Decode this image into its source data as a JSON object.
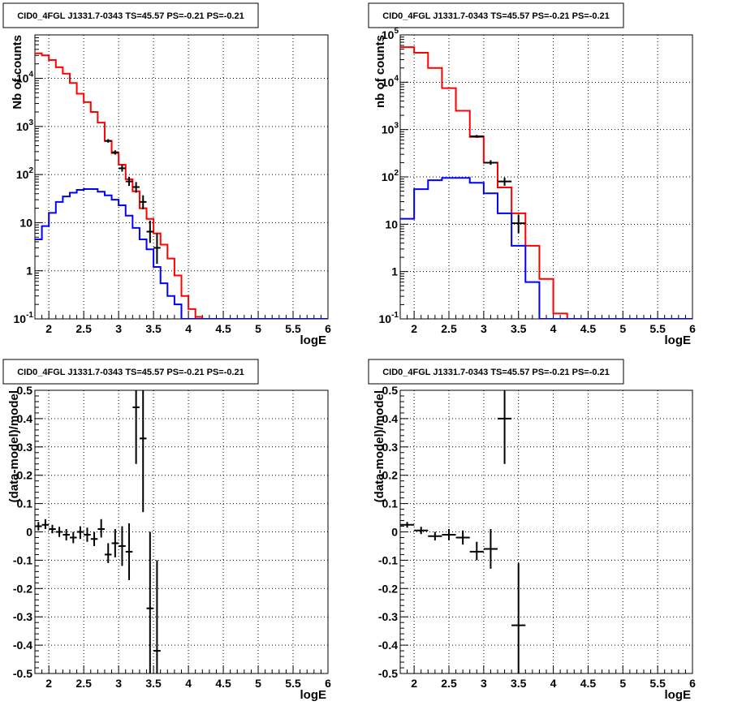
{
  "chart_data": [
    {
      "type": "line",
      "title": "CID0_4FGL J1331.7-0343 TS=45.57 PS=-0.21 PS=-0.21",
      "xlabel": "logE",
      "ylabel": "Nb of counts",
      "xlim": [
        1.8,
        6.0
      ],
      "ylim": [
        0.1,
        80000
      ],
      "yscale": "log",
      "grid": true,
      "xticks": [
        "2",
        "2.5",
        "3",
        "3.5",
        "4",
        "4.5",
        "5",
        "5.5",
        "6"
      ],
      "yticks": [
        "10^-1",
        "1",
        "10",
        "10^2",
        "10^3",
        "10^4"
      ],
      "series": [
        {
          "color": "#ff0000",
          "kind": "step",
          "edges": [
            1.8,
            1.9,
            2.0,
            2.1,
            2.2,
            2.3,
            2.4,
            2.5,
            2.6,
            2.7,
            2.8,
            2.9,
            3.0,
            3.1,
            3.2,
            3.3,
            3.4,
            3.5,
            3.6,
            3.7,
            3.8,
            3.9,
            4.0,
            4.1,
            4.2,
            6.0
          ],
          "values": [
            33000,
            30000,
            24000,
            17000,
            12500,
            8000,
            4800,
            3200,
            2000,
            1200,
            500,
            280,
            160,
            80,
            45,
            20,
            12,
            6,
            3.5,
            1.8,
            0.8,
            0.3,
            0.16,
            0.11,
            0.1
          ]
        },
        {
          "color": "#0000ff",
          "kind": "step",
          "edges": [
            1.8,
            1.9,
            2.0,
            2.1,
            2.2,
            2.3,
            2.4,
            2.5,
            2.6,
            2.7,
            2.8,
            2.9,
            3.0,
            3.1,
            3.2,
            3.3,
            3.4,
            3.5,
            3.6,
            3.7,
            3.8,
            3.9,
            4.0,
            6.0
          ],
          "values": [
            4.5,
            8.5,
            16,
            27,
            35,
            42,
            48,
            50,
            50,
            44,
            37,
            30,
            23,
            14,
            7.8,
            4.5,
            2.8,
            1.2,
            0.55,
            0.3,
            0.2,
            0.1,
            0.1
          ]
        },
        {
          "color": "#000000",
          "kind": "points",
          "points": [
            {
              "x": 2.85,
              "y": 500,
              "lo": 460,
              "hi": 545,
              "xerr": 0.05
            },
            {
              "x": 2.95,
              "y": 290,
              "lo": 260,
              "hi": 320,
              "xerr": 0.05
            },
            {
              "x": 3.05,
              "y": 135,
              "lo": 115,
              "hi": 160,
              "xerr": 0.05
            },
            {
              "x": 3.15,
              "y": 72,
              "lo": 58,
              "hi": 90,
              "xerr": 0.05
            },
            {
              "x": 3.25,
              "y": 55,
              "lo": 42,
              "hi": 70,
              "xerr": 0.05
            },
            {
              "x": 3.35,
              "y": 27,
              "lo": 19,
              "hi": 37,
              "xerr": 0.05
            },
            {
              "x": 3.45,
              "y": 6.5,
              "lo": 3.8,
              "hi": 11,
              "xerr": 0.05
            },
            {
              "x": 3.55,
              "y": 3,
              "lo": 1.4,
              "hi": 6,
              "xerr": 0.05
            }
          ]
        }
      ]
    },
    {
      "type": "line",
      "title": "CID0_4FGL J1331.7-0343 TS=45.57 PS=-0.21 PS=-0.21",
      "xlabel": "logE",
      "ylabel": "nb of counts",
      "xlim": [
        1.8,
        6.0
      ],
      "ylim": [
        0.1,
        100000
      ],
      "yscale": "log",
      "grid": true,
      "xticks": [
        "2",
        "2.5",
        "3",
        "3.5",
        "4",
        "4.5",
        "5",
        "5.5",
        "6"
      ],
      "yticks": [
        "10^-1",
        "1",
        "10",
        "10^2",
        "10^3",
        "10^4",
        "10^5"
      ],
      "series": [
        {
          "color": "#ff0000",
          "kind": "step",
          "edges": [
            1.8,
            2.0,
            2.2,
            2.4,
            2.6,
            2.8,
            3.0,
            3.2,
            3.4,
            3.6,
            3.8,
            4.0,
            4.2,
            6.0
          ],
          "values": [
            55000,
            42000,
            20000,
            7500,
            2500,
            700,
            200,
            60,
            17,
            3.5,
            0.7,
            0.13,
            0.1
          ]
        },
        {
          "color": "#0000ff",
          "kind": "step",
          "edges": [
            1.8,
            2.0,
            2.2,
            2.4,
            2.6,
            2.8,
            3.0,
            3.2,
            3.4,
            3.6,
            3.8,
            4.0,
            6.0
          ],
          "values": [
            13,
            55,
            85,
            95,
            95,
            75,
            45,
            17,
            3.5,
            0.6,
            0.1,
            0.1
          ]
        },
        {
          "color": "#000000",
          "kind": "points",
          "points": [
            {
              "x": 2.9,
              "y": 720,
              "lo": 670,
              "hi": 770,
              "xerr": 0.1
            },
            {
              "x": 3.1,
              "y": 200,
              "lo": 180,
              "hi": 225,
              "xerr": 0.1
            },
            {
              "x": 3.3,
              "y": 80,
              "lo": 65,
              "hi": 97,
              "xerr": 0.1
            },
            {
              "x": 3.5,
              "y": 10.5,
              "lo": 6.5,
              "hi": 16,
              "xerr": 0.1
            }
          ]
        }
      ]
    },
    {
      "type": "scatter",
      "title": "CID0_4FGL J1331.7-0343 TS=45.57 PS=-0.21 PS=-0.21",
      "xlabel": "logE",
      "ylabel": "(data-model)/model",
      "xlim": [
        1.8,
        6.0
      ],
      "ylim": [
        -0.5,
        0.5
      ],
      "grid": true,
      "xticks": [
        "2",
        "2.5",
        "3",
        "3.5",
        "4",
        "4.5",
        "5",
        "5.5",
        "6"
      ],
      "yticks": [
        "-0.5",
        "-0.4",
        "-0.3",
        "-0.2",
        "-0.1",
        "0",
        "0.1",
        "0.2",
        "0.3",
        "0.4",
        "0.5"
      ],
      "series": [
        {
          "color": "#000000",
          "kind": "points",
          "points": [
            {
              "x": 1.85,
              "y": 0.02,
              "lo": 0.005,
              "hi": 0.035,
              "xerr": 0.05
            },
            {
              "x": 1.95,
              "y": 0.025,
              "lo": 0.01,
              "hi": 0.045,
              "xerr": 0.05
            },
            {
              "x": 2.05,
              "y": 0.01,
              "lo": -0.005,
              "hi": 0.025,
              "xerr": 0.05
            },
            {
              "x": 2.15,
              "y": 0.0,
              "lo": -0.018,
              "hi": 0.018,
              "xerr": 0.05
            },
            {
              "x": 2.25,
              "y": -0.01,
              "lo": -0.03,
              "hi": 0.01,
              "xerr": 0.05
            },
            {
              "x": 2.35,
              "y": -0.02,
              "lo": -0.04,
              "hi": 0.0,
              "xerr": 0.05
            },
            {
              "x": 2.45,
              "y": 0.0,
              "lo": -0.025,
              "hi": 0.02,
              "xerr": 0.05
            },
            {
              "x": 2.55,
              "y": -0.01,
              "lo": -0.035,
              "hi": 0.015,
              "xerr": 0.05
            },
            {
              "x": 2.65,
              "y": -0.025,
              "lo": -0.05,
              "hi": 0.0,
              "xerr": 0.05
            },
            {
              "x": 2.75,
              "y": 0.01,
              "lo": -0.02,
              "hi": 0.045,
              "xerr": 0.05
            },
            {
              "x": 2.85,
              "y": -0.08,
              "lo": -0.11,
              "hi": -0.04,
              "xerr": 0.05
            },
            {
              "x": 2.95,
              "y": -0.04,
              "lo": -0.09,
              "hi": 0.01,
              "xerr": 0.05
            },
            {
              "x": 3.05,
              "y": -0.05,
              "lo": -0.12,
              "hi": 0.02,
              "xerr": 0.05
            },
            {
              "x": 3.15,
              "y": -0.07,
              "lo": -0.17,
              "hi": 0.03,
              "xerr": 0.05
            },
            {
              "x": 3.25,
              "y": 0.44,
              "lo": 0.24,
              "hi": 0.5,
              "xerr": 0.05
            },
            {
              "x": 3.35,
              "y": 0.33,
              "lo": 0.07,
              "hi": 0.5,
              "xerr": 0.05
            },
            {
              "x": 3.45,
              "y": -0.27,
              "lo": -0.5,
              "hi": 0.0,
              "xerr": 0.05
            },
            {
              "x": 3.55,
              "y": -0.42,
              "lo": -0.5,
              "hi": -0.1,
              "xerr": 0.05
            }
          ]
        }
      ]
    },
    {
      "type": "scatter",
      "title": "CID0_4FGL J1331.7-0343 TS=45.57 PS=-0.21 PS=-0.21",
      "xlabel": "logE",
      "ylabel": "(data-model)/model",
      "xlim": [
        1.8,
        6.0
      ],
      "ylim": [
        -0.5,
        0.5
      ],
      "grid": true,
      "xticks": [
        "2",
        "2.5",
        "3",
        "3.5",
        "4",
        "4.5",
        "5",
        "5.5",
        "6"
      ],
      "yticks": [
        "-0.5",
        "-0.4",
        "-0.3",
        "-0.2",
        "-0.1",
        "0",
        "0.1",
        "0.2",
        "0.3",
        "0.4",
        "0.5"
      ],
      "series": [
        {
          "color": "#000000",
          "kind": "points",
          "points": [
            {
              "x": 1.9,
              "y": 0.025,
              "lo": 0.015,
              "hi": 0.035,
              "xerr": 0.1
            },
            {
              "x": 2.1,
              "y": 0.005,
              "lo": -0.008,
              "hi": 0.018,
              "xerr": 0.1
            },
            {
              "x": 2.3,
              "y": -0.015,
              "lo": -0.03,
              "hi": 0.0,
              "xerr": 0.1
            },
            {
              "x": 2.5,
              "y": -0.01,
              "lo": -0.03,
              "hi": 0.01,
              "xerr": 0.1
            },
            {
              "x": 2.7,
              "y": -0.02,
              "lo": -0.045,
              "hi": 0.005,
              "xerr": 0.1
            },
            {
              "x": 2.9,
              "y": -0.07,
              "lo": -0.1,
              "hi": -0.035,
              "xerr": 0.1
            },
            {
              "x": 3.1,
              "y": -0.06,
              "lo": -0.13,
              "hi": 0.01,
              "xerr": 0.1
            },
            {
              "x": 3.3,
              "y": 0.4,
              "lo": 0.24,
              "hi": 0.5,
              "xerr": 0.1
            },
            {
              "x": 3.5,
              "y": -0.33,
              "lo": -0.5,
              "hi": -0.11,
              "xerr": 0.1
            }
          ]
        }
      ]
    }
  ]
}
